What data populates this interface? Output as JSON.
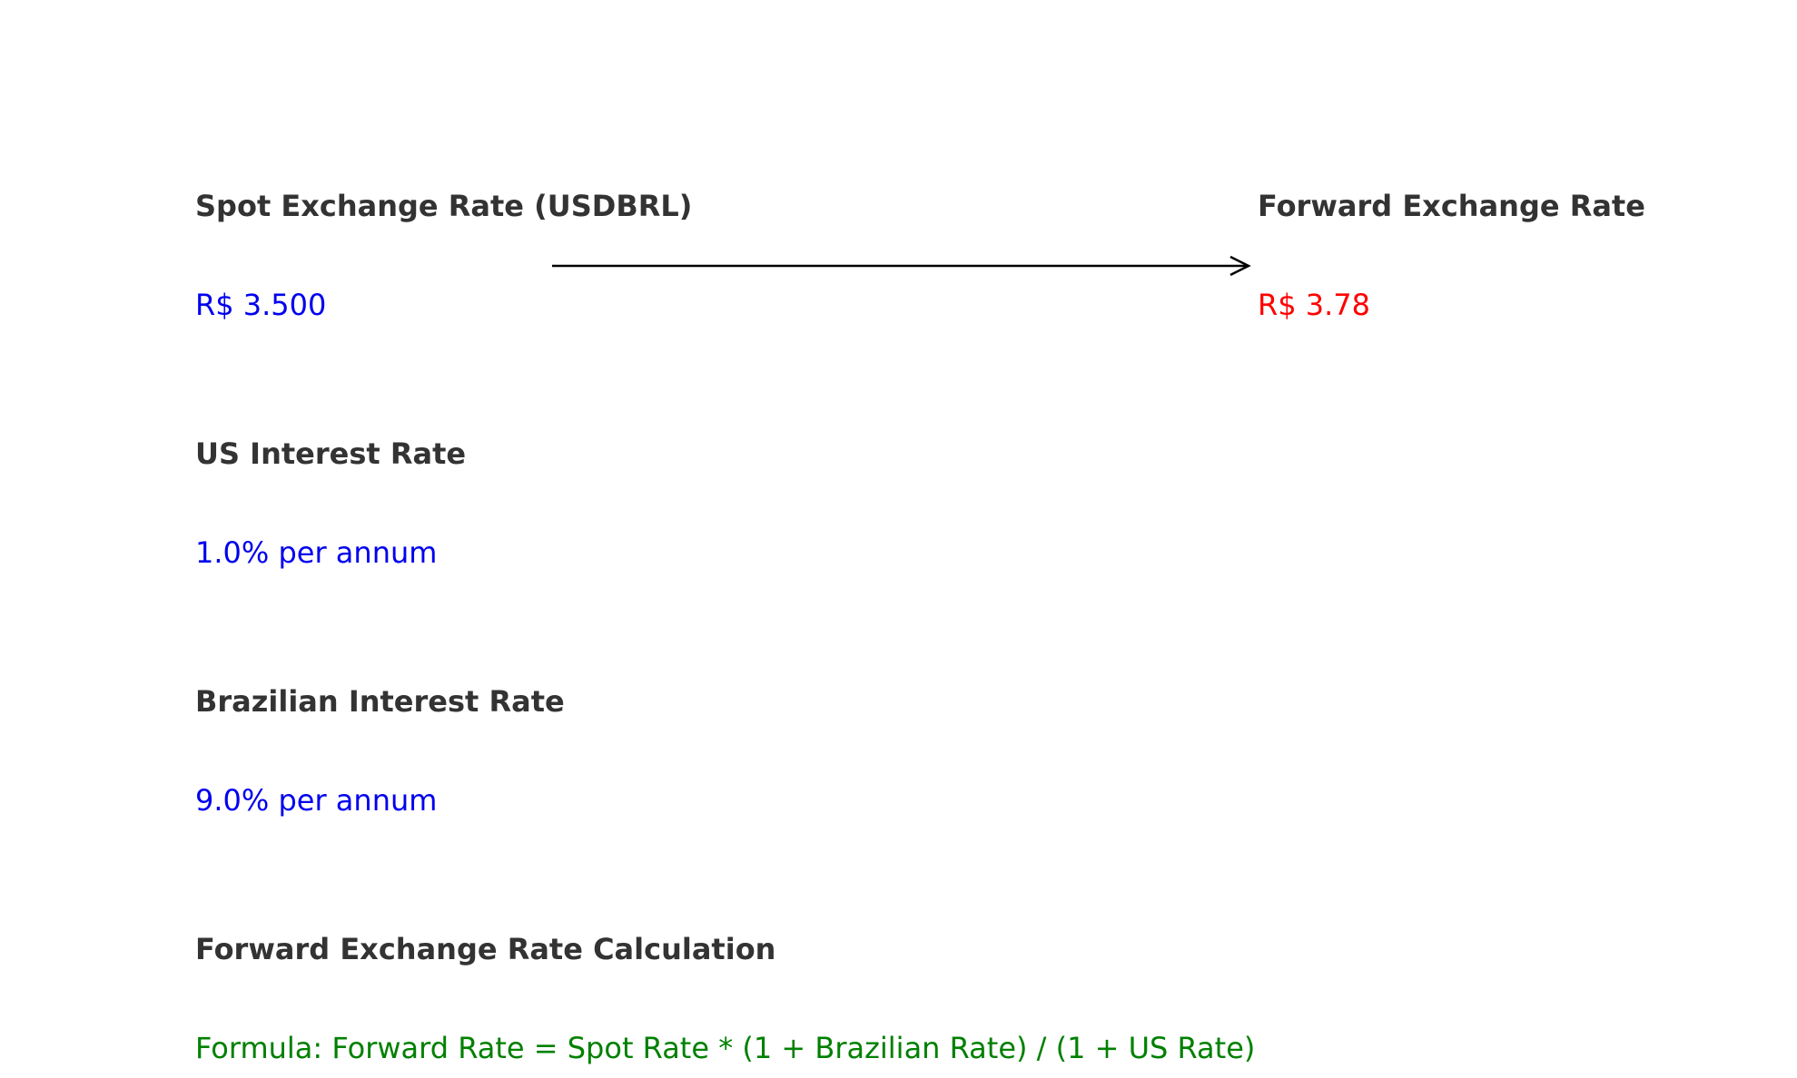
{
  "colors": {
    "label": "#333333",
    "input_value": "#0000ee",
    "result_value": "#ff0000",
    "formula": "#008000",
    "arrow": "#000000"
  },
  "spot": {
    "label": "Spot Exchange Rate (USDBRL)",
    "value": "R$ 3.500"
  },
  "forward": {
    "label": "Forward Exchange Rate",
    "value": "R$ 3.78"
  },
  "us_rate": {
    "label": "US Interest Rate",
    "value": "1.0% per annum"
  },
  "br_rate": {
    "label": "Brazilian Interest Rate",
    "value": "9.0% per annum"
  },
  "calculation": {
    "label": "Forward Exchange Rate Calculation",
    "formula": "Formula: Forward Rate = Spot Rate * (1 + Brazilian Rate) / (1 + US Rate)"
  }
}
